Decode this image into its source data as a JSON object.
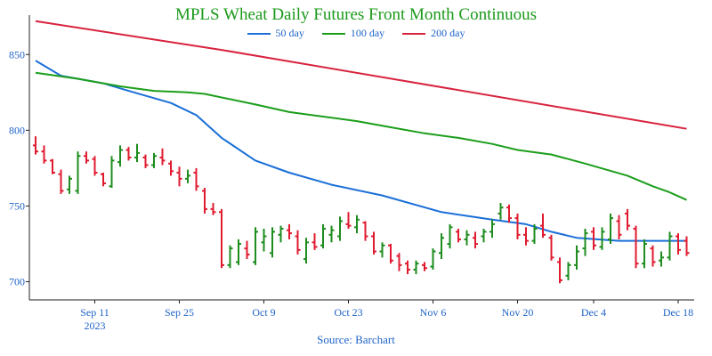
{
  "chart_data": {
    "type": "line",
    "title": "MPLS Wheat Daily Futures Front Month Continuous",
    "source": "Source: Barchart",
    "ylim": [
      688,
      876
    ],
    "yticks": [
      700,
      750,
      800,
      850
    ],
    "xticks": [
      {
        "idx": 7,
        "label": "Sep 11",
        "sub": "2023"
      },
      {
        "idx": 17,
        "label": "Sep 25",
        "sub": ""
      },
      {
        "idx": 27,
        "label": "Oct 9",
        "sub": ""
      },
      {
        "idx": 37,
        "label": "Oct 23",
        "sub": ""
      },
      {
        "idx": 47,
        "label": "Nov 6",
        "sub": ""
      },
      {
        "idx": 57,
        "label": "Nov 20",
        "sub": ""
      },
      {
        "idx": 66,
        "label": "Dec 4",
        "sub": ""
      },
      {
        "idx": 76,
        "label": "Dec 18",
        "sub": ""
      }
    ],
    "n_bars": 78,
    "legend_position": "top-center",
    "colors": {
      "up": "#1e8c1e",
      "down": "#e01b2f",
      "ma50": "#1a6fd8",
      "ma100": "#1b9e1b",
      "ma200": "#d8233f",
      "axis_text": "#1e63c8"
    },
    "series": [
      {
        "name": "50 day",
        "color": "#1a6fd8",
        "points": [
          [
            0,
            846
          ],
          [
            3,
            836
          ],
          [
            8,
            831
          ],
          [
            11,
            826
          ],
          [
            16,
            818
          ],
          [
            19,
            810
          ],
          [
            22,
            795
          ],
          [
            26,
            780
          ],
          [
            30,
            772
          ],
          [
            35,
            764
          ],
          [
            41,
            757
          ],
          [
            48,
            746
          ],
          [
            54,
            741
          ],
          [
            58,
            738
          ],
          [
            61,
            733
          ],
          [
            64,
            729
          ],
          [
            69,
            727
          ],
          [
            75,
            727
          ],
          [
            77,
            727
          ]
        ]
      },
      {
        "name": "100 day",
        "color": "#1b9e1b",
        "points": [
          [
            0,
            838
          ],
          [
            5,
            834
          ],
          [
            10,
            829
          ],
          [
            14,
            826
          ],
          [
            18,
            825
          ],
          [
            20,
            824
          ],
          [
            26,
            817
          ],
          [
            30,
            812
          ],
          [
            34,
            809
          ],
          [
            38,
            806
          ],
          [
            42,
            802
          ],
          [
            46,
            798
          ],
          [
            50,
            795
          ],
          [
            54,
            791
          ],
          [
            57,
            787
          ],
          [
            61,
            784
          ],
          [
            65,
            778
          ],
          [
            70,
            770
          ],
          [
            73,
            763
          ],
          [
            75,
            759
          ],
          [
            77,
            754
          ]
        ]
      },
      {
        "name": "200 day",
        "color": "#d8233f",
        "points": [
          [
            0,
            872
          ],
          [
            22,
            853
          ],
          [
            77,
            801
          ]
        ]
      }
    ],
    "ohlc": [
      [
        790,
        796,
        784,
        786
      ],
      [
        786,
        790,
        778,
        780
      ],
      [
        780,
        781,
        771,
        772
      ],
      [
        771,
        774,
        758,
        760
      ],
      [
        761,
        770,
        758,
        768
      ],
      [
        760,
        786,
        758,
        783
      ],
      [
        783,
        786,
        778,
        780
      ],
      [
        781,
        783,
        770,
        772
      ],
      [
        771,
        772,
        763,
        765
      ],
      [
        763,
        783,
        762,
        780
      ],
      [
        779,
        790,
        776,
        787
      ],
      [
        787,
        789,
        780,
        782
      ],
      [
        782,
        791,
        779,
        785
      ],
      [
        782,
        784,
        775,
        777
      ],
      [
        777,
        785,
        775,
        783
      ],
      [
        782,
        788,
        777,
        780
      ],
      [
        778,
        780,
        770,
        773
      ],
      [
        772,
        776,
        763,
        768
      ],
      [
        768,
        774,
        765,
        770
      ],
      [
        772,
        775,
        760,
        763
      ],
      [
        760,
        762,
        745,
        748
      ],
      [
        748,
        752,
        744,
        746
      ],
      [
        746,
        748,
        709,
        711
      ],
      [
        711,
        724,
        709,
        722
      ],
      [
        713,
        728,
        711,
        725
      ],
      [
        722,
        727,
        715,
        718
      ],
      [
        713,
        736,
        711,
        733
      ],
      [
        726,
        735,
        720,
        730
      ],
      [
        719,
        736,
        716,
        733
      ],
      [
        731,
        737,
        726,
        735
      ],
      [
        734,
        738,
        728,
        732
      ],
      [
        730,
        734,
        718,
        721
      ],
      [
        715,
        729,
        712,
        726
      ],
      [
        726,
        732,
        721,
        723
      ],
      [
        724,
        738,
        722,
        735
      ],
      [
        731,
        737,
        726,
        734
      ],
      [
        730,
        743,
        727,
        740
      ],
      [
        738,
        746,
        735,
        737
      ],
      [
        736,
        744,
        732,
        741
      ],
      [
        739,
        740,
        727,
        730
      ],
      [
        730,
        733,
        718,
        720
      ],
      [
        720,
        726,
        716,
        724
      ],
      [
        724,
        725,
        712,
        714
      ],
      [
        717,
        719,
        707,
        711
      ],
      [
        712,
        714,
        705,
        708
      ],
      [
        708,
        714,
        705,
        712
      ],
      [
        711,
        713,
        707,
        709
      ],
      [
        710,
        722,
        708,
        720
      ],
      [
        719,
        732,
        715,
        729
      ],
      [
        725,
        738,
        722,
        736
      ],
      [
        733,
        735,
        726,
        728
      ],
      [
        728,
        734,
        724,
        731
      ],
      [
        729,
        733,
        722,
        725
      ],
      [
        730,
        735,
        726,
        733
      ],
      [
        733,
        741,
        729,
        738
      ],
      [
        745,
        752,
        741,
        749
      ],
      [
        749,
        751,
        739,
        742
      ],
      [
        742,
        745,
        728,
        731
      ],
      [
        731,
        736,
        724,
        727
      ],
      [
        727,
        738,
        725,
        735
      ],
      [
        737,
        745,
        729,
        731
      ],
      [
        729,
        731,
        714,
        716
      ],
      [
        713,
        716,
        699,
        701
      ],
      [
        704,
        713,
        701,
        711
      ],
      [
        711,
        724,
        708,
        720
      ],
      [
        722,
        735,
        717,
        732
      ],
      [
        733,
        736,
        721,
        724
      ],
      [
        723,
        736,
        721,
        733
      ],
      [
        728,
        745,
        725,
        742
      ],
      [
        740,
        744,
        728,
        731
      ],
      [
        745,
        748,
        734,
        737
      ],
      [
        735,
        737,
        709,
        712
      ],
      [
        712,
        728,
        709,
        725
      ],
      [
        722,
        724,
        710,
        713
      ],
      [
        714,
        720,
        710,
        716
      ],
      [
        716,
        733,
        714,
        730
      ],
      [
        730,
        732,
        718,
        721
      ],
      [
        727,
        730,
        717,
        719
      ]
    ]
  },
  "legend": [
    {
      "label": "50 day",
      "color": "#1a6fd8"
    },
    {
      "label": "100 day",
      "color": "#1b9e1b"
    },
    {
      "label": "200 day",
      "color": "#d8233f"
    }
  ]
}
